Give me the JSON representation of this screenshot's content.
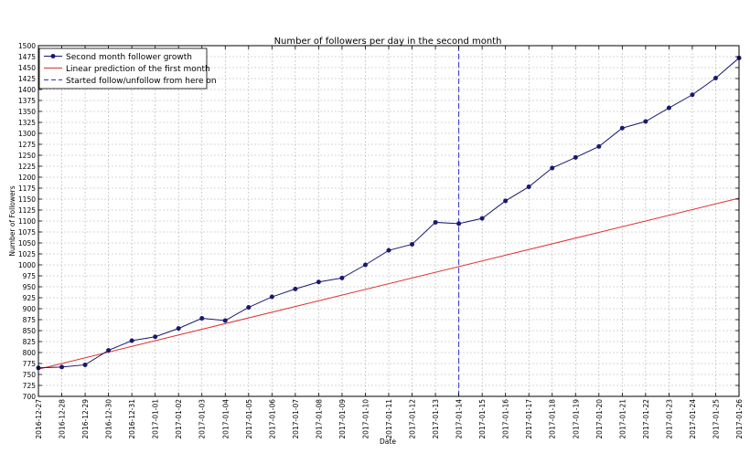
{
  "chart_data": {
    "type": "line",
    "title": "Number of followers per day in the second month",
    "xlabel": "Date",
    "ylabel": "Number of Followers",
    "ylim": [
      700,
      1500
    ],
    "yticks": [
      700,
      725,
      750,
      775,
      800,
      825,
      850,
      875,
      900,
      925,
      950,
      975,
      1000,
      1025,
      1050,
      1075,
      1100,
      1125,
      1150,
      1175,
      1200,
      1225,
      1250,
      1275,
      1300,
      1325,
      1350,
      1375,
      1400,
      1425,
      1450,
      1475,
      1500
    ],
    "x": [
      "2016-12-27",
      "2016-12-28",
      "2016-12-29",
      "2016-12-30",
      "2016-12-31",
      "2017-01-01",
      "2017-01-02",
      "2017-01-03",
      "2017-01-04",
      "2017-01-05",
      "2017-01-06",
      "2017-01-07",
      "2017-01-08",
      "2017-01-09",
      "2017-01-10",
      "2017-01-11",
      "2017-01-12",
      "2017-01-13",
      "2017-01-14",
      "2017-01-15",
      "2017-01-16",
      "2017-01-17",
      "2017-01-18",
      "2017-01-19",
      "2017-01-20",
      "2017-01-21",
      "2017-01-22",
      "2017-01-23",
      "2017-01-24",
      "2017-01-25",
      "2017-01-26"
    ],
    "grid": true,
    "legend_position": "top-left",
    "series": [
      {
        "name": "Second month follower growth",
        "color": "#191970",
        "style": "line-markers",
        "values": [
          765,
          767,
          772,
          805,
          827,
          836,
          855,
          878,
          873,
          903,
          927,
          945,
          961,
          970,
          1000,
          1033,
          1047,
          1097,
          1094,
          1106,
          1146,
          1178,
          1221,
          1245,
          1270,
          1312,
          1327,
          1358,
          1388,
          1426,
          1472
        ]
      },
      {
        "name": "Linear prediction of the first month",
        "color": "#e03030",
        "style": "line",
        "start": 762,
        "end": 1152
      },
      {
        "name": "Started follow/unfollow from here on",
        "color": "#3030d0",
        "style": "vline-dashed",
        "x": "2017-01-14"
      }
    ]
  }
}
